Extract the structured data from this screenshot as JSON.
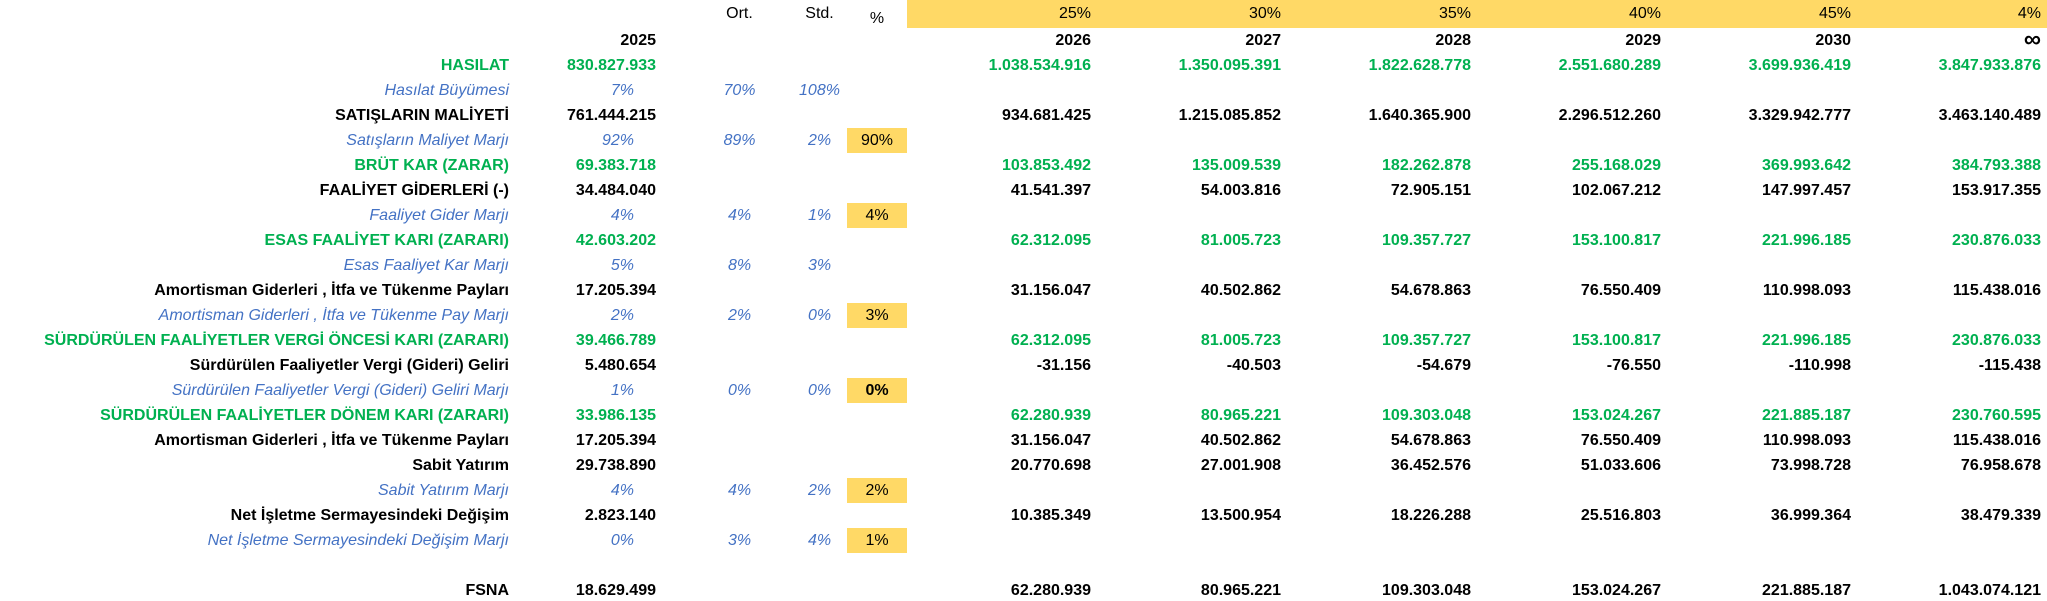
{
  "sheet": {
    "colors": {
      "highlight_yellow": "#FFD966",
      "profit_green": "#00B050",
      "ratio_blue": "#4472C4",
      "text_black": "#000000"
    },
    "header": {
      "ort_label": "Ort.",
      "std_label": "Std.",
      "pct_label": "%",
      "base_year": "2025",
      "scenario_percents": [
        "25%",
        "30%",
        "35%",
        "40%",
        "45%",
        "4%"
      ],
      "years": [
        "2026",
        "2027",
        "2028",
        "2029",
        "2030",
        "∞"
      ]
    },
    "rows": [
      {
        "label": "HASILAT",
        "style": "green",
        "v2025": "830.827.933",
        "ort": "",
        "std": "",
        "pct": "",
        "years": [
          "1.038.534.916",
          "1.350.095.391",
          "1.822.628.778",
          "2.551.680.289",
          "3.699.936.419",
          "3.847.933.876"
        ]
      },
      {
        "label": "Hasılat Büyümesi",
        "style": "marj",
        "v2025": "7%",
        "ort": "70%",
        "std": "108%",
        "pct": "",
        "years": [
          "",
          "",
          "",
          "",
          "",
          ""
        ]
      },
      {
        "label": "SATIŞLARIN MALİYETİ",
        "style": "bold",
        "v2025": "761.444.215",
        "ort": "",
        "std": "",
        "pct": "",
        "years": [
          "934.681.425",
          "1.215.085.852",
          "1.640.365.900",
          "2.296.512.260",
          "3.329.942.777",
          "3.463.140.489"
        ]
      },
      {
        "label": "Satışların Maliyet Marjı",
        "style": "marj",
        "v2025": "92%",
        "ort": "89%",
        "std": "2%",
        "pct": "90%",
        "years": [
          "",
          "",
          "",
          "",
          "",
          ""
        ]
      },
      {
        "label": "BRÜT KAR (ZARAR)",
        "style": "green",
        "v2025": "69.383.718",
        "ort": "",
        "std": "",
        "pct": "",
        "years": [
          "103.853.492",
          "135.009.539",
          "182.262.878",
          "255.168.029",
          "369.993.642",
          "384.793.388"
        ]
      },
      {
        "label": "FAALİYET GİDERLERİ (-)",
        "style": "bold",
        "v2025": "34.484.040",
        "ort": "",
        "std": "",
        "pct": "",
        "years": [
          "41.541.397",
          "54.003.816",
          "72.905.151",
          "102.067.212",
          "147.997.457",
          "153.917.355"
        ]
      },
      {
        "label": "Faaliyet Gider Marjı",
        "style": "marj",
        "v2025": "4%",
        "ort": "4%",
        "std": "1%",
        "pct": "4%",
        "years": [
          "",
          "",
          "",
          "",
          "",
          ""
        ]
      },
      {
        "label": "ESAS FAALİYET KARI (ZARARI)",
        "style": "green",
        "v2025": "42.603.202",
        "ort": "",
        "std": "",
        "pct": "",
        "years": [
          "62.312.095",
          "81.005.723",
          "109.357.727",
          "153.100.817",
          "221.996.185",
          "230.876.033"
        ]
      },
      {
        "label": "Esas Faaliyet Kar Marjı",
        "style": "marj",
        "v2025": "5%",
        "ort": "8%",
        "std": "3%",
        "pct": "",
        "years": [
          "",
          "",
          "",
          "",
          "",
          ""
        ]
      },
      {
        "label": "Amortisman Giderleri , İtfa ve Tükenme Payları",
        "style": "bold",
        "v2025": "17.205.394",
        "ort": "",
        "std": "",
        "pct": "",
        "years": [
          "31.156.047",
          "40.502.862",
          "54.678.863",
          "76.550.409",
          "110.998.093",
          "115.438.016"
        ]
      },
      {
        "label": "Amortisman Giderleri , İtfa ve Tükenme Pay Marjı",
        "style": "marj",
        "v2025": "2%",
        "ort": "2%",
        "std": "0%",
        "pct": "3%",
        "years": [
          "",
          "",
          "",
          "",
          "",
          ""
        ]
      },
      {
        "label": "SÜRDÜRÜLEN FAALİYETLER VERGİ ÖNCESİ KARI (ZARARI)",
        "style": "green",
        "v2025": "39.466.789",
        "ort": "",
        "std": "",
        "pct": "",
        "years": [
          "62.312.095",
          "81.005.723",
          "109.357.727",
          "153.100.817",
          "221.996.185",
          "230.876.033"
        ]
      },
      {
        "label": "Sürdürülen Faaliyetler Vergi (Gideri) Geliri",
        "style": "bold",
        "v2025": "5.480.654",
        "ort": "",
        "std": "",
        "pct": "",
        "years": [
          "-31.156",
          "-40.503",
          "-54.679",
          "-76.550",
          "-110.998",
          "-115.438"
        ]
      },
      {
        "label": "Sürdürülen Faaliyetler Vergi (Gideri) Geliri Marjı",
        "style": "marj",
        "v2025": "1%",
        "ort": "0%",
        "std": "0%",
        "pct": "0%",
        "pct_bold": true,
        "years": [
          "",
          "",
          "",
          "",
          "",
          ""
        ]
      },
      {
        "label": "SÜRDÜRÜLEN FAALİYETLER DÖNEM KARI (ZARARI)",
        "style": "green",
        "v2025": "33.986.135",
        "ort": "",
        "std": "",
        "pct": "",
        "years": [
          "62.280.939",
          "80.965.221",
          "109.303.048",
          "153.024.267",
          "221.885.187",
          "230.760.595"
        ]
      },
      {
        "label": "Amortisman Giderleri , İtfa ve Tükenme Payları",
        "style": "bold",
        "v2025": "17.205.394",
        "ort": "",
        "std": "",
        "pct": "",
        "years": [
          "31.156.047",
          "40.502.862",
          "54.678.863",
          "76.550.409",
          "110.998.093",
          "115.438.016"
        ]
      },
      {
        "label": "Sabit Yatırım",
        "style": "bold",
        "v2025": "29.738.890",
        "ort": "",
        "std": "",
        "pct": "",
        "years": [
          "20.770.698",
          "27.001.908",
          "36.452.576",
          "51.033.606",
          "73.998.728",
          "76.958.678"
        ]
      },
      {
        "label": "Sabit Yatırım Marjı",
        "style": "marj",
        "v2025": "4%",
        "ort": "4%",
        "std": "2%",
        "pct": "2%",
        "years": [
          "",
          "",
          "",
          "",
          "",
          ""
        ]
      },
      {
        "label": "Net İşletme Sermayesindeki Değişim",
        "style": "bold",
        "v2025": "2.823.140",
        "ort": "",
        "std": "",
        "pct": "",
        "years": [
          "10.385.349",
          "13.500.954",
          "18.226.288",
          "25.516.803",
          "36.999.364",
          "38.479.339"
        ]
      },
      {
        "label": "Net İşletme Sermayesindeki Değişim Marjı",
        "style": "marj",
        "v2025": "0%",
        "ort": "3%",
        "std": "4%",
        "pct": "1%",
        "years": [
          "",
          "",
          "",
          "",
          "",
          ""
        ]
      },
      {
        "label": "",
        "style": "blank",
        "v2025": "",
        "ort": "",
        "std": "",
        "pct": "",
        "years": [
          "",
          "",
          "",
          "",
          "",
          ""
        ]
      },
      {
        "label": "FSNA",
        "style": "bold",
        "v2025": "18.629.499",
        "ort": "",
        "std": "",
        "pct": "",
        "years": [
          "62.280.939",
          "80.965.221",
          "109.303.048",
          "153.024.267",
          "221.885.187",
          "1.043.074.121"
        ]
      }
    ]
  }
}
